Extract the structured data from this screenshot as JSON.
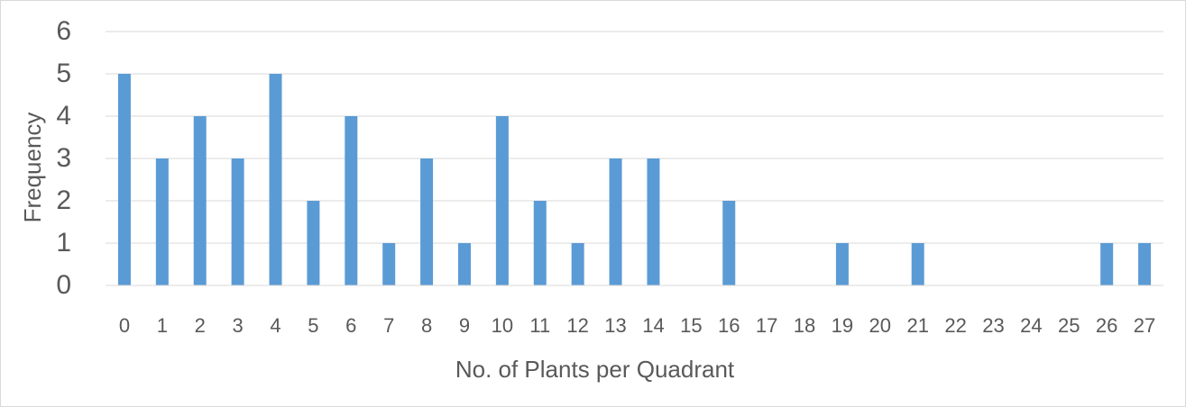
{
  "chart_data": {
    "type": "bar",
    "title": "",
    "xlabel": "No. of Plants per Quadrant",
    "ylabel": "Frequency",
    "categories": [
      "0",
      "1",
      "2",
      "3",
      "4",
      "5",
      "6",
      "7",
      "8",
      "9",
      "10",
      "11",
      "12",
      "13",
      "14",
      "15",
      "16",
      "17",
      "18",
      "19",
      "20",
      "21",
      "22",
      "23",
      "24",
      "25",
      "26",
      "27"
    ],
    "series": [
      {
        "values": [
          5,
          3,
          4,
          3,
          5,
          2,
          4,
          1,
          3,
          1,
          4,
          2,
          1,
          3,
          3,
          0,
          2,
          0,
          0,
          1,
          0,
          1,
          0,
          0,
          0,
          0,
          1,
          1
        ]
      }
    ],
    "ylim": [
      0,
      6
    ],
    "yticks": [
      0,
      1,
      2,
      3,
      4,
      5,
      6
    ],
    "grid": true,
    "legend": "none",
    "colors": {
      "bar": "#5b9bd5",
      "grid": "#d9d9d9",
      "text": "#595959"
    }
  }
}
